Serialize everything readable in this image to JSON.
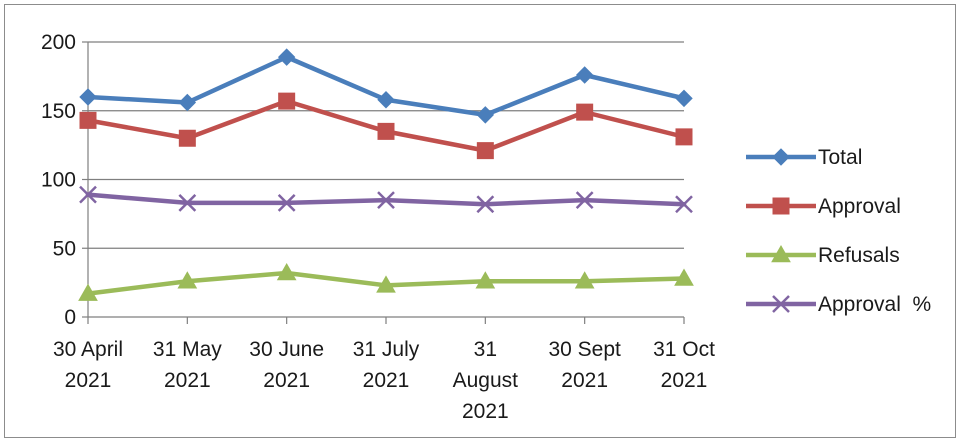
{
  "chart_data": {
    "type": "line",
    "title": "",
    "xlabel": "",
    "ylabel": "",
    "ylim": [
      0,
      200
    ],
    "y_ticks": [
      0,
      50,
      100,
      150,
      200
    ],
    "grid": "horizontal",
    "legend_position": "right",
    "categories": [
      [
        "30 April",
        "2021"
      ],
      [
        "31 May",
        "2021"
      ],
      [
        "30 June",
        "2021"
      ],
      [
        "31 July",
        "2021"
      ],
      [
        "31",
        "August",
        "2021"
      ],
      [
        "30 Sept",
        "2021"
      ],
      [
        "31 Oct",
        "2021"
      ]
    ],
    "series": [
      {
        "name": "Total",
        "color": "#4a7ebb",
        "marker": "diamond",
        "values": [
          160,
          156,
          189,
          158,
          147,
          176,
          159
        ]
      },
      {
        "name": "Approval",
        "color": "#c0504d",
        "marker": "square",
        "values": [
          143,
          130,
          157,
          135,
          121,
          149,
          131
        ]
      },
      {
        "name": "Refusals",
        "color": "#9bbb59",
        "marker": "triangle",
        "values": [
          17,
          26,
          32,
          23,
          26,
          26,
          28
        ]
      },
      {
        "name": "Approval  %",
        "color": "#8064a2",
        "marker": "x",
        "values": [
          89,
          83,
          83,
          85,
          82,
          85,
          82
        ]
      }
    ]
  }
}
